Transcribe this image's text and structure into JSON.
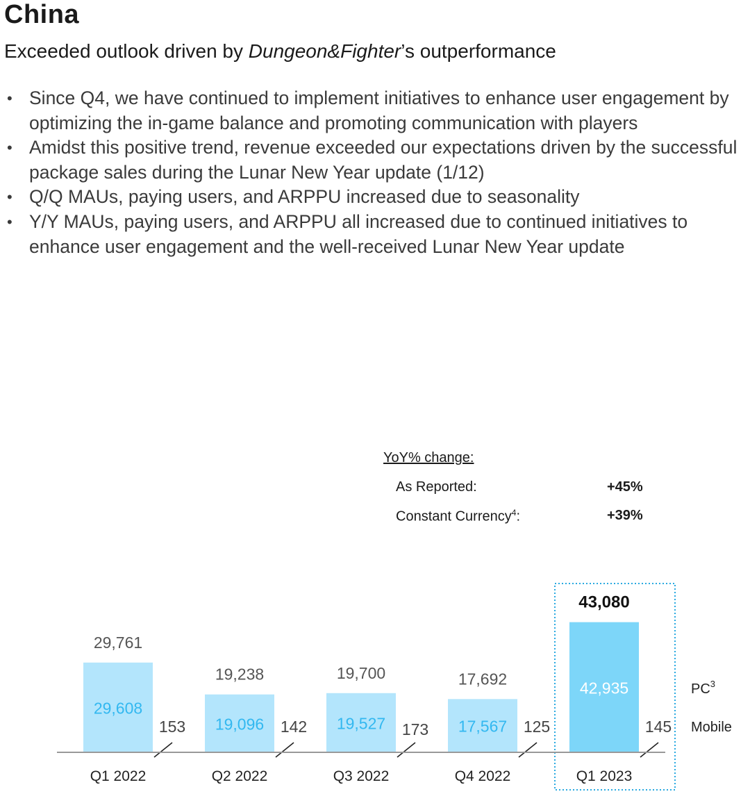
{
  "header": {
    "title": "China",
    "subtitle_prefix": "Exceeded outlook driven by ",
    "subtitle_italic": "Dungeon&Fighter",
    "subtitle_suffix": "’s outperformance"
  },
  "bullets": [
    "Since Q4, we have continued to implement initiatives to enhance user engagement by optimizing the in-game balance and promoting communication with players",
    "Amidst this positive trend, revenue exceeded our expectations driven by the successful package sales during the Lunar New Year update (1/12)",
    "Q/Q MAUs, paying users, and ARPPU increased due to seasonality",
    "Y/Y MAUs, paying users, and ARPPU all increased due to continued initiatives to enhance user engagement and the well-received Lunar New Year update"
  ],
  "yoy": {
    "header": "YoY% change:",
    "as_reported_label": "As Reported:",
    "as_reported_value": "+45%",
    "constant_currency_label": "Constant Currency",
    "constant_currency_sup": "4",
    "constant_currency_colon": ":",
    "constant_currency_value": "+39%"
  },
  "colors": {
    "pc_bar_light": "#b3e5fc",
    "pc_bar_highlight": "#7dd6f9",
    "pc_label_text": "#33b8f0",
    "highlight_border": "#29a9e0",
    "axis": "#999999"
  },
  "chart_data": {
    "type": "bar",
    "categories": [
      "Q1 2022",
      "Q2 2022",
      "Q3 2022",
      "Q4 2022",
      "Q1 2023"
    ],
    "series": [
      {
        "name": "PC",
        "values": [
          29608,
          19096,
          19527,
          17567,
          42935
        ]
      },
      {
        "name": "Mobile",
        "values": [
          153,
          142,
          173,
          125,
          145
        ]
      }
    ],
    "totals": [
      "29,761",
      "19,238",
      "19,700",
      "17,692",
      "43,080"
    ],
    "pc_labels": [
      "29,608",
      "19,096",
      "19,527",
      "17,567",
      "42,935"
    ],
    "mobile_labels": [
      "153",
      "142",
      "173",
      "125",
      "145"
    ],
    "highlight_index": 4,
    "legend": [
      {
        "label": "PC",
        "sup": "3"
      },
      {
        "label": "Mobile",
        "sup": ""
      }
    ],
    "ylim": [
      0,
      43080
    ]
  }
}
